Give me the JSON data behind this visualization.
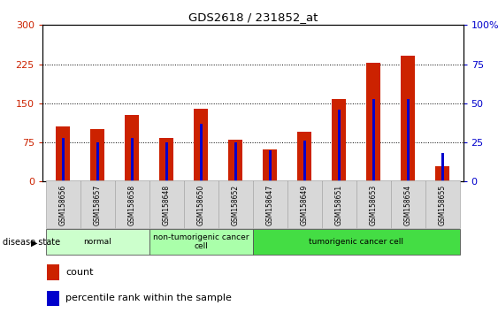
{
  "title": "GDS2618 / 231852_at",
  "samples": [
    "GSM158656",
    "GSM158657",
    "GSM158658",
    "GSM158648",
    "GSM158650",
    "GSM158652",
    "GSM158647",
    "GSM158649",
    "GSM158651",
    "GSM158653",
    "GSM158654",
    "GSM158655"
  ],
  "count_values": [
    105,
    100,
    128,
    83,
    140,
    80,
    62,
    95,
    158,
    228,
    242,
    30
  ],
  "percentile_values": [
    28,
    25,
    28,
    25,
    37,
    25,
    20,
    26,
    46,
    53,
    53,
    18
  ],
  "groups": [
    {
      "label": "normal",
      "indices": [
        0,
        1,
        2
      ],
      "color": "#ccffcc"
    },
    {
      "label": "non-tumorigenic cancer\ncell",
      "indices": [
        3,
        4,
        5
      ],
      "color": "#aaffaa"
    },
    {
      "label": "tumorigenic cancer cell",
      "indices": [
        6,
        7,
        8,
        9,
        10,
        11
      ],
      "color": "#44dd44"
    }
  ],
  "ylim_left": [
    0,
    300
  ],
  "ylim_right": [
    0,
    100
  ],
  "yticks_left": [
    0,
    75,
    150,
    225,
    300
  ],
  "yticks_right": [
    0,
    25,
    50,
    75,
    100
  ],
  "bar_color_count": "#cc2200",
  "bar_color_pct": "#0000cc",
  "legend_count": "count",
  "legend_pct": "percentile rank within the sample",
  "disease_state_label": "disease state"
}
